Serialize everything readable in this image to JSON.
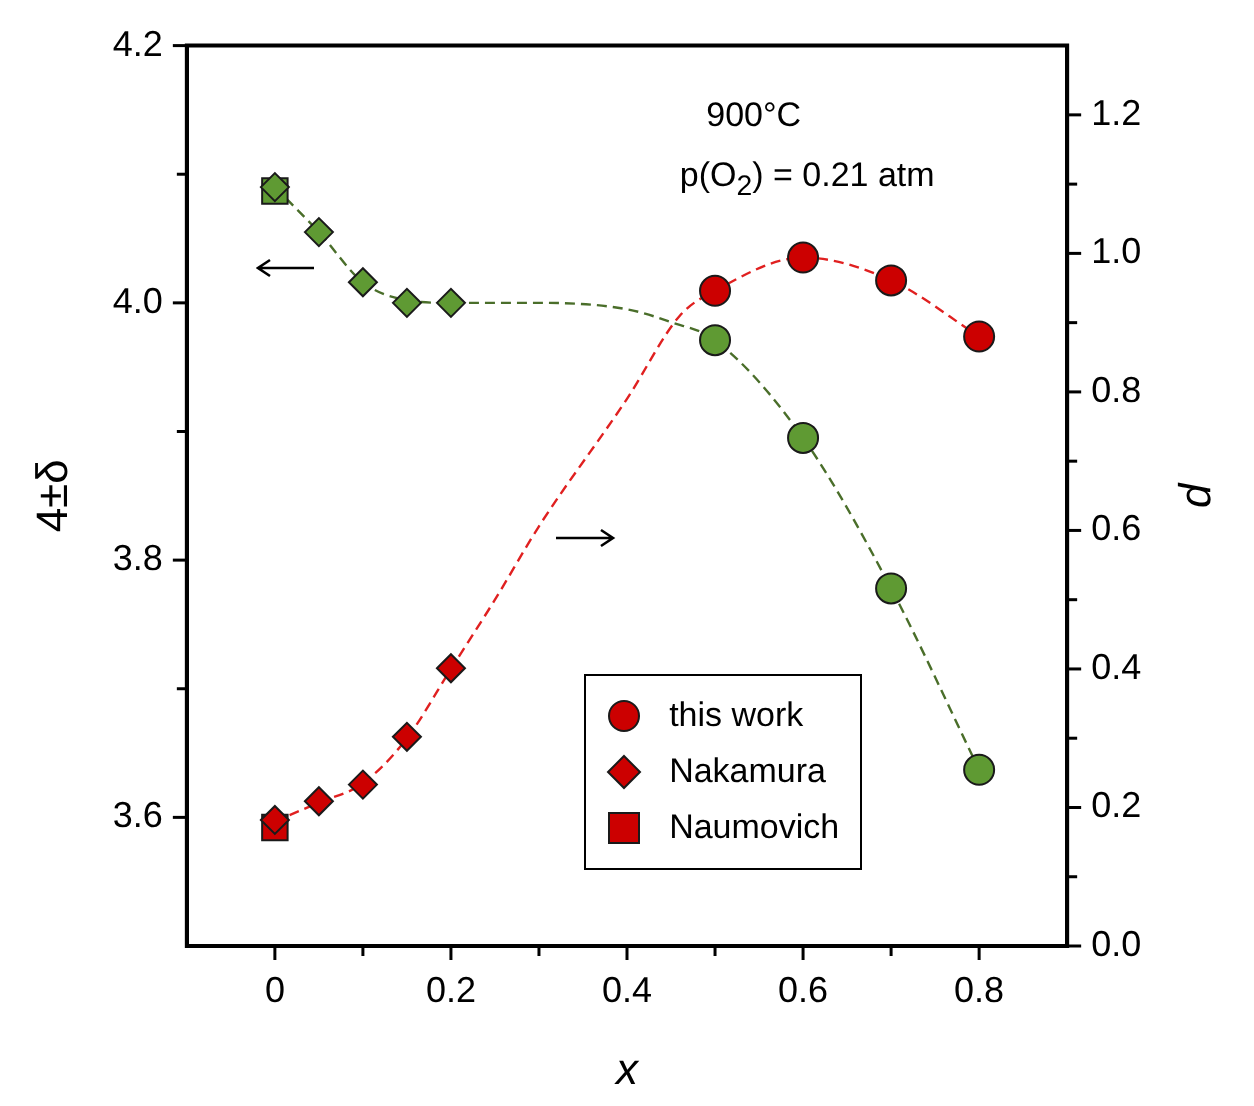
{
  "chart_data": {
    "type": "scatter",
    "xlabel": "x",
    "ylabel": "4±δ",
    "y2label": "p",
    "xlim": [
      -0.1,
      0.9
    ],
    "xticks": [
      0,
      {
        "value": 0.1,
        "label": null
      },
      0.2,
      {
        "value": 0.3,
        "label": null
      },
      0.4,
      {
        "value": 0.5,
        "label": null
      },
      0.6,
      {
        "value": 0.7,
        "label": null
      },
      0.8
    ],
    "ylim": [
      3.5,
      4.2
    ],
    "yticks": [
      3.6,
      {
        "value": 3.7,
        "label": null
      },
      3.8,
      {
        "value": 3.9,
        "label": null
      },
      {
        "value": 4.0,
        "label": "4.0"
      },
      {
        "value": 4.1,
        "label": null
      },
      4.2
    ],
    "y2lim": [
      0,
      1.3
    ],
    "y2ticks": [
      {
        "value": 0,
        "label": "0.0"
      },
      {
        "value": 0.1,
        "label": null
      },
      0.2,
      {
        "value": 0.3,
        "label": null
      },
      0.4,
      {
        "value": 0.5,
        "label": null
      },
      0.6,
      {
        "value": 0.7,
        "label": null
      },
      0.8,
      {
        "value": 0.9,
        "label": null
      },
      {
        "value": 1.0,
        "label": "1.0"
      },
      {
        "value": 1.1,
        "label": null
      },
      1.2
    ],
    "grid": false,
    "legend": "bottom right",
    "annotations": [
      "900°C",
      "p(O$_{2}$) = 0.21 atm"
    ],
    "series": [
      {
        "type": "line",
        "marker": "none",
        "line_style": "dashed",
        "color": "#4a6e2a",
        "x": [
          0,
          0.05,
          0.1,
          0.15,
          0.2,
          0.3,
          0.4,
          0.45,
          0.5,
          0.6,
          0.7,
          0.8
        ],
        "values": [
          4.09,
          4.055,
          4.016,
          4.002,
          4.0,
          4.0,
          3.995,
          3.985,
          3.971,
          3.895,
          3.778,
          3.637
        ]
      },
      {
        "type": "line",
        "marker": "none",
        "line_style": "dashed",
        "color": "#e02020",
        "axis": "y2",
        "x": [
          0,
          0.05,
          0.1,
          0.15,
          0.2,
          0.25,
          0.3,
          0.4,
          0.46,
          0.5,
          0.6,
          0.7,
          0.8
        ],
        "values": [
          0.18,
          0.207,
          0.235,
          0.3,
          0.4,
          0.5,
          0.606,
          0.79,
          0.91,
          0.946,
          0.994,
          0.961,
          0.88
        ]
      },
      {
        "marker": "circle",
        "color": "#5f9a33",
        "x": [
          0.5,
          0.6,
          0.7,
          0.8
        ],
        "values": [
          3.971,
          3.895,
          3.778,
          3.637
        ]
      },
      {
        "marker": "diamond",
        "color": "#5f9a33",
        "x": [
          0,
          0.05,
          0.1,
          0.15,
          0.2
        ],
        "values": [
          4.09,
          4.055,
          4.016,
          4.0,
          4.0
        ]
      },
      {
        "marker": "square",
        "color": "#5f9a33",
        "x": [
          0
        ],
        "values": [
          4.087
        ]
      },
      {
        "name": "this work",
        "marker": "circle",
        "color": "#cc0000",
        "axis": "y2",
        "x": [
          0.5,
          0.6,
          0.7,
          0.8
        ],
        "values": [
          0.946,
          0.994,
          0.961,
          0.88
        ]
      },
      {
        "name": "Nakamura",
        "marker": "diamond",
        "color": "#cc0000",
        "axis": "y2",
        "x": [
          0,
          0.05,
          0.1,
          0.15,
          0.2
        ],
        "values": [
          0.182,
          0.209,
          0.233,
          0.302,
          0.401
        ]
      },
      {
        "name": "Naumovich",
        "marker": "square",
        "color": "#cc0000",
        "axis": "y2",
        "x": [
          0
        ],
        "values": [
          0.171
        ]
      }
    ]
  }
}
